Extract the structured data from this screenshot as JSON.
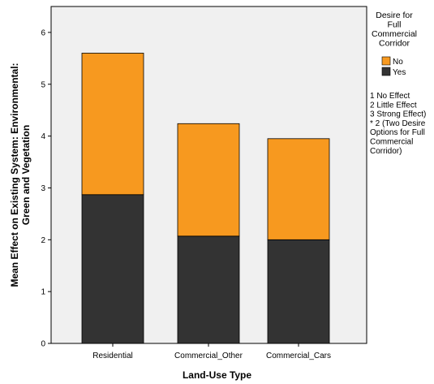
{
  "chart_data": {
    "type": "bar",
    "stacked": true,
    "categories": [
      "Residential",
      "Commercial_Other",
      "Commercial_Cars"
    ],
    "series": [
      {
        "name": "Yes",
        "values": [
          2.87,
          2.07,
          2.0
        ],
        "color": "#333333"
      },
      {
        "name": "No",
        "values": [
          2.73,
          2.17,
          1.95
        ],
        "color": "#f7991f"
      }
    ],
    "xlabel": "Land-Use Type",
    "ylabel_lines": [
      "Mean Effect on Existing System: Environmental:",
      "Green and Vegetation"
    ],
    "ylim": [
      0,
      6.5
    ],
    "yticks": [
      0,
      1,
      2,
      3,
      4,
      5,
      6
    ],
    "grid": false,
    "plot_background": "#f0f0f0",
    "legend": {
      "title_lines": [
        "Desire for",
        "Full",
        "Commercial",
        "Corridor"
      ],
      "entries": [
        {
          "label": "No",
          "color": "#f7991f"
        },
        {
          "label": "Yes",
          "color": "#333333"
        }
      ],
      "placement": "right"
    },
    "annotation_lines": [
      "1 No Effect",
      "2 Little Effect",
      "3 Strong Effect)",
      "* 2 (Two Desire",
      "Options for Full",
      "Commercial",
      "Corridor)"
    ]
  }
}
